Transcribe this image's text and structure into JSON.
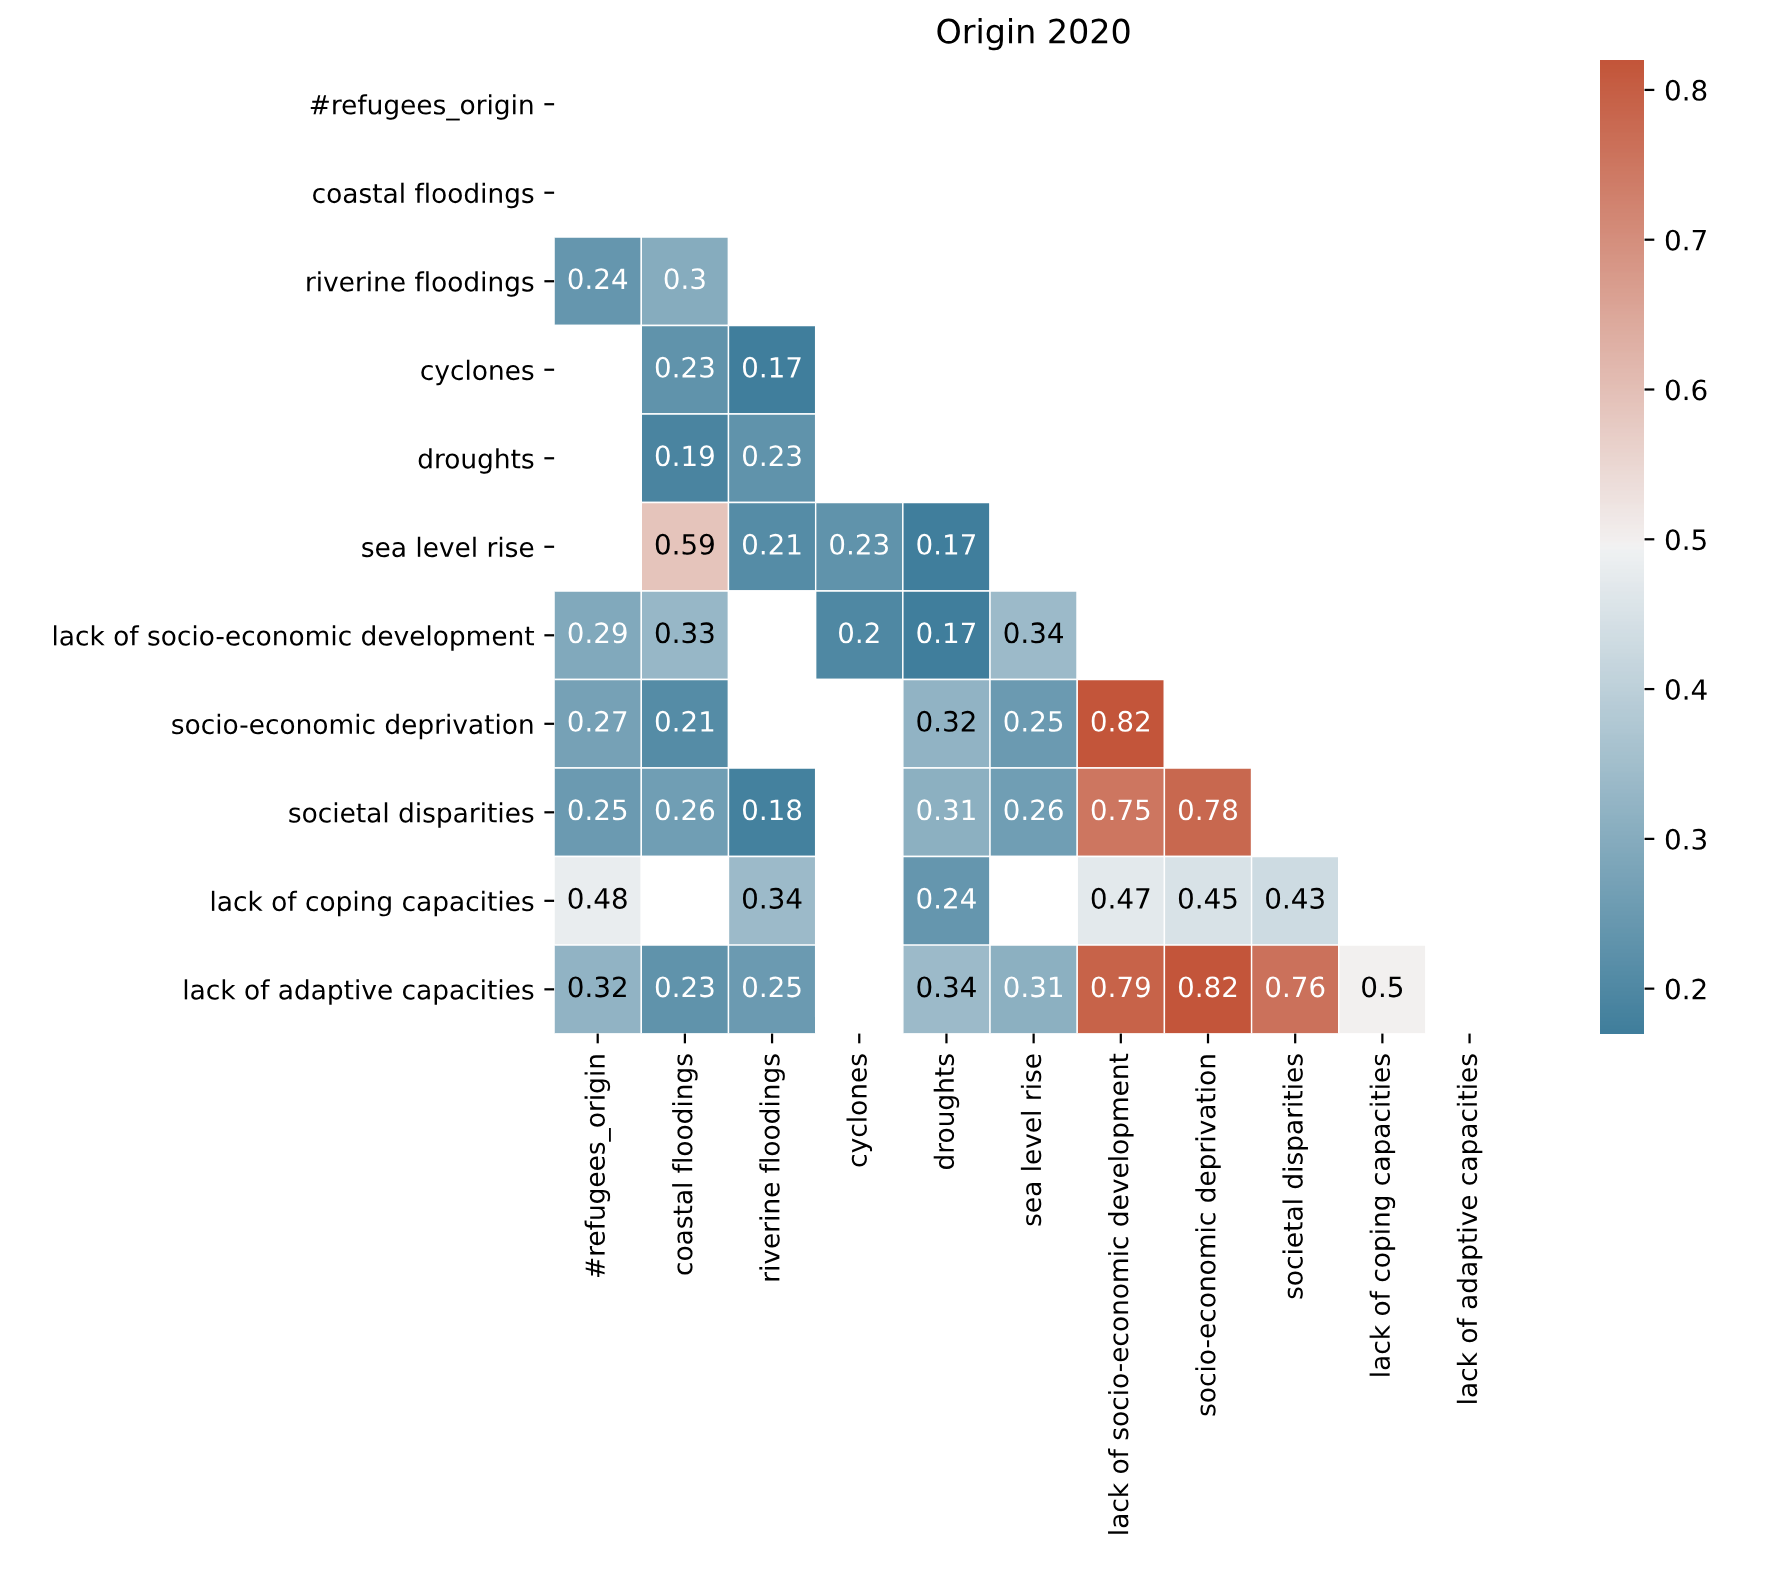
{
  "chart_data": {
    "type": "heatmap",
    "title": "Origin 2020",
    "categories": [
      "#refugees_origin",
      "coastal floodings",
      "riverine floodings",
      "cyclones",
      "droughts",
      "sea level rise",
      "lack of socio-economic development",
      "socio-economic deprivation",
      "societal disparities",
      "lack of coping capacities",
      "lack of adaptive capacities"
    ],
    "y_categories": [
      "#refugees_origin",
      "coastal floodings",
      "riverine floodings",
      "cyclones",
      "droughts",
      "sea level rise",
      "lack of socio-economic development",
      "socio-economic deprivation",
      "societal disparities",
      "lack of coping capacities",
      "lack of adaptive capacities"
    ],
    "cells": [
      [
        null,
        null,
        null,
        null,
        null,
        null,
        null,
        null,
        null,
        null,
        null
      ],
      [
        null,
        null,
        null,
        null,
        null,
        null,
        null,
        null,
        null,
        null,
        null
      ],
      [
        0.24,
        0.3,
        null,
        null,
        null,
        null,
        null,
        null,
        null,
        null,
        null
      ],
      [
        null,
        0.23,
        0.17,
        null,
        null,
        null,
        null,
        null,
        null,
        null,
        null
      ],
      [
        null,
        0.19,
        0.23,
        null,
        null,
        null,
        null,
        null,
        null,
        null,
        null
      ],
      [
        null,
        0.59,
        0.21,
        0.23,
        0.17,
        null,
        null,
        null,
        null,
        null,
        null
      ],
      [
        0.29,
        0.33,
        null,
        0.2,
        0.17,
        0.34,
        null,
        null,
        null,
        null,
        null
      ],
      [
        0.27,
        0.21,
        null,
        null,
        0.32,
        0.25,
        0.82,
        null,
        null,
        null,
        null
      ],
      [
        0.25,
        0.26,
        0.18,
        null,
        0.31,
        0.26,
        0.75,
        0.78,
        null,
        null,
        null
      ],
      [
        0.48,
        null,
        0.34,
        null,
        0.24,
        null,
        0.47,
        0.45,
        0.43,
        null,
        null
      ],
      [
        0.32,
        0.23,
        0.25,
        null,
        0.34,
        0.31,
        0.79,
        0.82,
        0.76,
        0.5,
        null
      ]
    ],
    "clim": [
      0.17,
      0.82
    ],
    "cticks": [
      0.2,
      0.3,
      0.4,
      0.5,
      0.6,
      0.7,
      0.8
    ],
    "data_labels": true
  }
}
